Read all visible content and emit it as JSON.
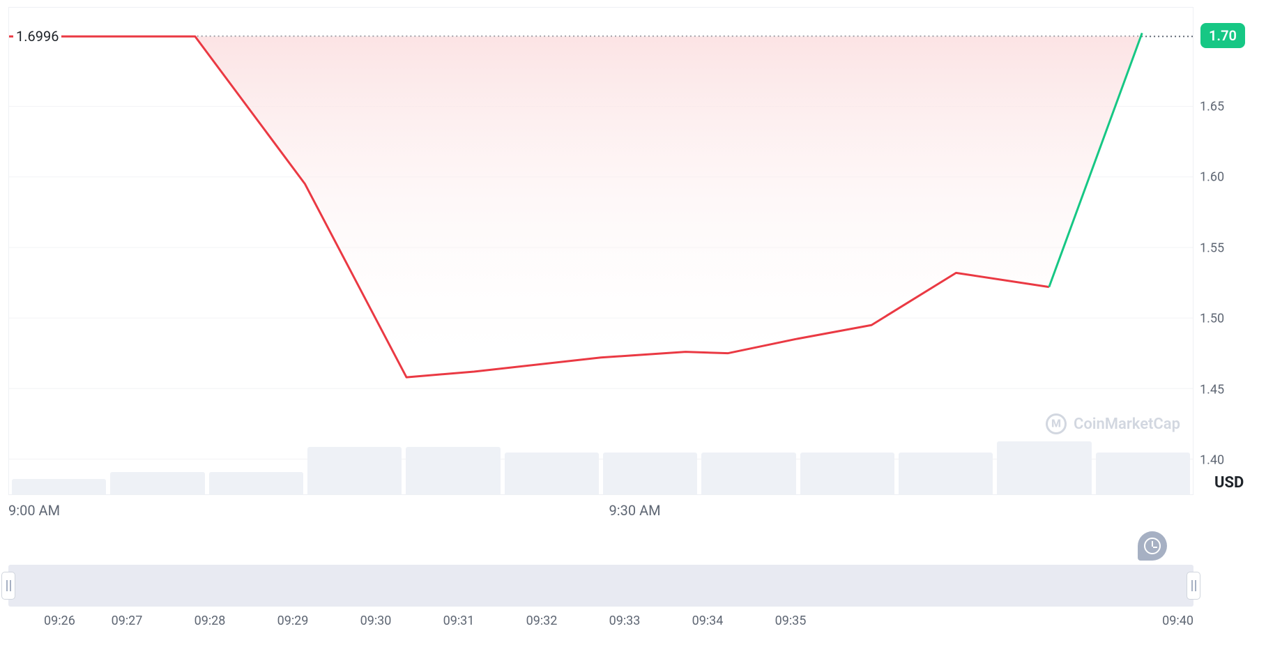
{
  "chart": {
    "type": "line-area",
    "currency_label": "USD",
    "reference_value": 1.6996,
    "reference_label": "1.6996",
    "current_badge": {
      "value": 1.7,
      "label": "1.70",
      "bg_color": "#16c784"
    },
    "ylim": [
      1.375,
      1.72
    ],
    "yticks": [
      {
        "v": 1.4,
        "label": "1.40"
      },
      {
        "v": 1.45,
        "label": "1.45"
      },
      {
        "v": 1.5,
        "label": "1.50"
      },
      {
        "v": 1.55,
        "label": "1.55"
      },
      {
        "v": 1.6,
        "label": "1.60"
      },
      {
        "v": 1.65,
        "label": "1.65"
      }
    ],
    "xlim": [
      0,
      14
    ],
    "xticks": [
      {
        "t": 0,
        "label": "9:00 AM"
      },
      {
        "t": 7.4,
        "label": "9:30 AM"
      }
    ],
    "series": [
      {
        "t": 0.0,
        "v": 1.6996
      },
      {
        "t": 2.2,
        "v": 1.6996
      },
      {
        "t": 3.5,
        "v": 1.595
      },
      {
        "t": 4.7,
        "v": 1.458
      },
      {
        "t": 5.5,
        "v": 1.462
      },
      {
        "t": 7.0,
        "v": 1.472
      },
      {
        "t": 8.0,
        "v": 1.476
      },
      {
        "t": 8.5,
        "v": 1.475
      },
      {
        "t": 9.3,
        "v": 1.485
      },
      {
        "t": 10.2,
        "v": 1.495
      },
      {
        "t": 11.2,
        "v": 1.532
      },
      {
        "t": 12.3,
        "v": 1.522
      },
      {
        "t": 13.4,
        "v": 1.702
      }
    ],
    "line_color_down": "#ea3943",
    "line_color_up": "#16c784",
    "area_fill_top": "#fbe0e1",
    "area_fill_bottom": "#ffffff",
    "line_width": 3,
    "grid_color": "#f2f3f5",
    "border_color": "#eef0f4",
    "background_color": "#ffffff",
    "y_tick_fontsize": 18,
    "x_tick_fontsize": 20,
    "tick_color": "#5e6673",
    "ref_label_fontsize": 20,
    "ref_line_color": "#5e6673"
  },
  "volume": {
    "bar_color": "#eef1f6",
    "heights_pct": [
      22,
      32,
      32,
      68,
      68,
      60,
      60,
      60,
      60,
      60,
      76,
      60
    ]
  },
  "watermark": {
    "text": "CoinMarketCap",
    "color": "#a6b0c3"
  },
  "scrubber": {
    "bg_color": "#e8eaf2",
    "handle_bg": "#ffffff",
    "handle_border": "#d0d5dd",
    "ticks": [
      "09:26",
      "09:27",
      "09:28",
      "09:29",
      "09:30",
      "09:31",
      "09:32",
      "09:33",
      "09:34",
      "09:35",
      "09:40"
    ],
    "tick_positions_pct": [
      3,
      10,
      17,
      24,
      31,
      38,
      45,
      52,
      59,
      66,
      100
    ]
  }
}
